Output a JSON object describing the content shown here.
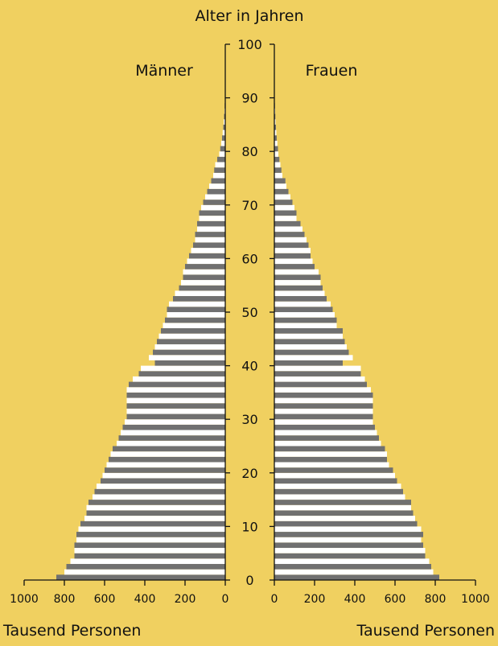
{
  "colors": {
    "background": "#F0D060",
    "bar_dark": "#707070",
    "bar_light": "#FFFFFF",
    "axis": "#111111"
  },
  "chart_data": {
    "type": "bar",
    "orientation": "horizontal",
    "subtype": "population-pyramid",
    "title": "",
    "age_axis_label": "Alter in Jahren",
    "left_panel_label": "Männer",
    "right_panel_label": "Frauen",
    "left_xlabel": "Tausend Personen",
    "right_xlabel": "Tausend Personen",
    "age_range": [
      0,
      100
    ],
    "age_ticks": [
      0,
      10,
      20,
      30,
      40,
      50,
      60,
      70,
      80,
      90,
      100
    ],
    "x_range": [
      0,
      1000
    ],
    "x_ticks": [
      0,
      200,
      400,
      600,
      800,
      1000
    ],
    "tick_labels": [
      "0",
      "200",
      "400",
      "600",
      "800",
      "1000"
    ],
    "age_tick_labels": [
      "0",
      "10",
      "20",
      "30",
      "40",
      "50",
      "60",
      "70",
      "80",
      "90",
      "100"
    ],
    "series": [
      {
        "name": "Männer",
        "values": [
          840,
          800,
          790,
          770,
          750,
          750,
          750,
          740,
          740,
          730,
          720,
          700,
          690,
          690,
          680,
          660,
          650,
          640,
          620,
          610,
          600,
          590,
          580,
          570,
          560,
          540,
          530,
          520,
          510,
          500,
          490,
          490,
          490,
          490,
          490,
          490,
          480,
          460,
          430,
          420,
          350,
          380,
          360,
          350,
          340,
          330,
          320,
          310,
          300,
          290,
          290,
          280,
          260,
          250,
          230,
          220,
          210,
          210,
          200,
          190,
          180,
          170,
          160,
          150,
          150,
          140,
          140,
          130,
          130,
          120,
          110,
          100,
          90,
          80,
          70,
          60,
          55,
          50,
          40,
          30,
          25,
          20,
          16,
          13,
          10,
          8,
          6,
          4,
          3,
          2,
          0,
          0,
          0,
          0,
          0,
          0,
          0,
          0,
          0,
          0
        ]
      },
      {
        "name": "Frauen",
        "values": [
          820,
          790,
          780,
          770,
          750,
          750,
          740,
          730,
          740,
          730,
          710,
          700,
          690,
          680,
          680,
          650,
          640,
          630,
          610,
          600,
          590,
          570,
          560,
          560,
          550,
          530,
          520,
          510,
          500,
          490,
          490,
          490,
          490,
          490,
          490,
          480,
          460,
          450,
          430,
          430,
          340,
          390,
          370,
          360,
          350,
          340,
          340,
          310,
          310,
          300,
          290,
          280,
          260,
          250,
          240,
          230,
          230,
          220,
          200,
          190,
          180,
          180,
          170,
          160,
          150,
          140,
          130,
          110,
          110,
          100,
          90,
          80,
          70,
          60,
          55,
          40,
          35,
          30,
          25,
          20,
          18,
          15,
          12,
          10,
          8,
          6,
          5,
          4,
          3,
          2,
          2,
          1,
          0,
          0,
          0,
          0,
          0,
          0,
          0,
          0
        ]
      }
    ],
    "grid": false,
    "legend": "none"
  }
}
